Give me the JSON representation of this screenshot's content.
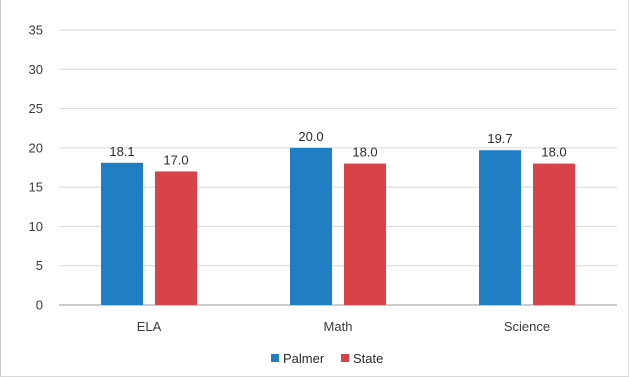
{
  "chart_data": {
    "type": "bar",
    "categories": [
      "ELA",
      "Math",
      "Science"
    ],
    "series": [
      {
        "name": "Palmer",
        "color": "#1f7ec4",
        "values": [
          18.1,
          20.0,
          19.7
        ],
        "labels": [
          "18.1",
          "20.0",
          "19.7"
        ]
      },
      {
        "name": "State",
        "color": "#d8434a",
        "values": [
          17.0,
          18.0,
          18.0
        ],
        "labels": [
          "17.0",
          "18.0",
          "18.0"
        ]
      }
    ],
    "ylim": [
      0,
      35
    ],
    "yticks": [
      "0",
      "5",
      "10",
      "15",
      "20",
      "25",
      "30",
      "35"
    ],
    "grid": true,
    "legend": "bottom"
  }
}
